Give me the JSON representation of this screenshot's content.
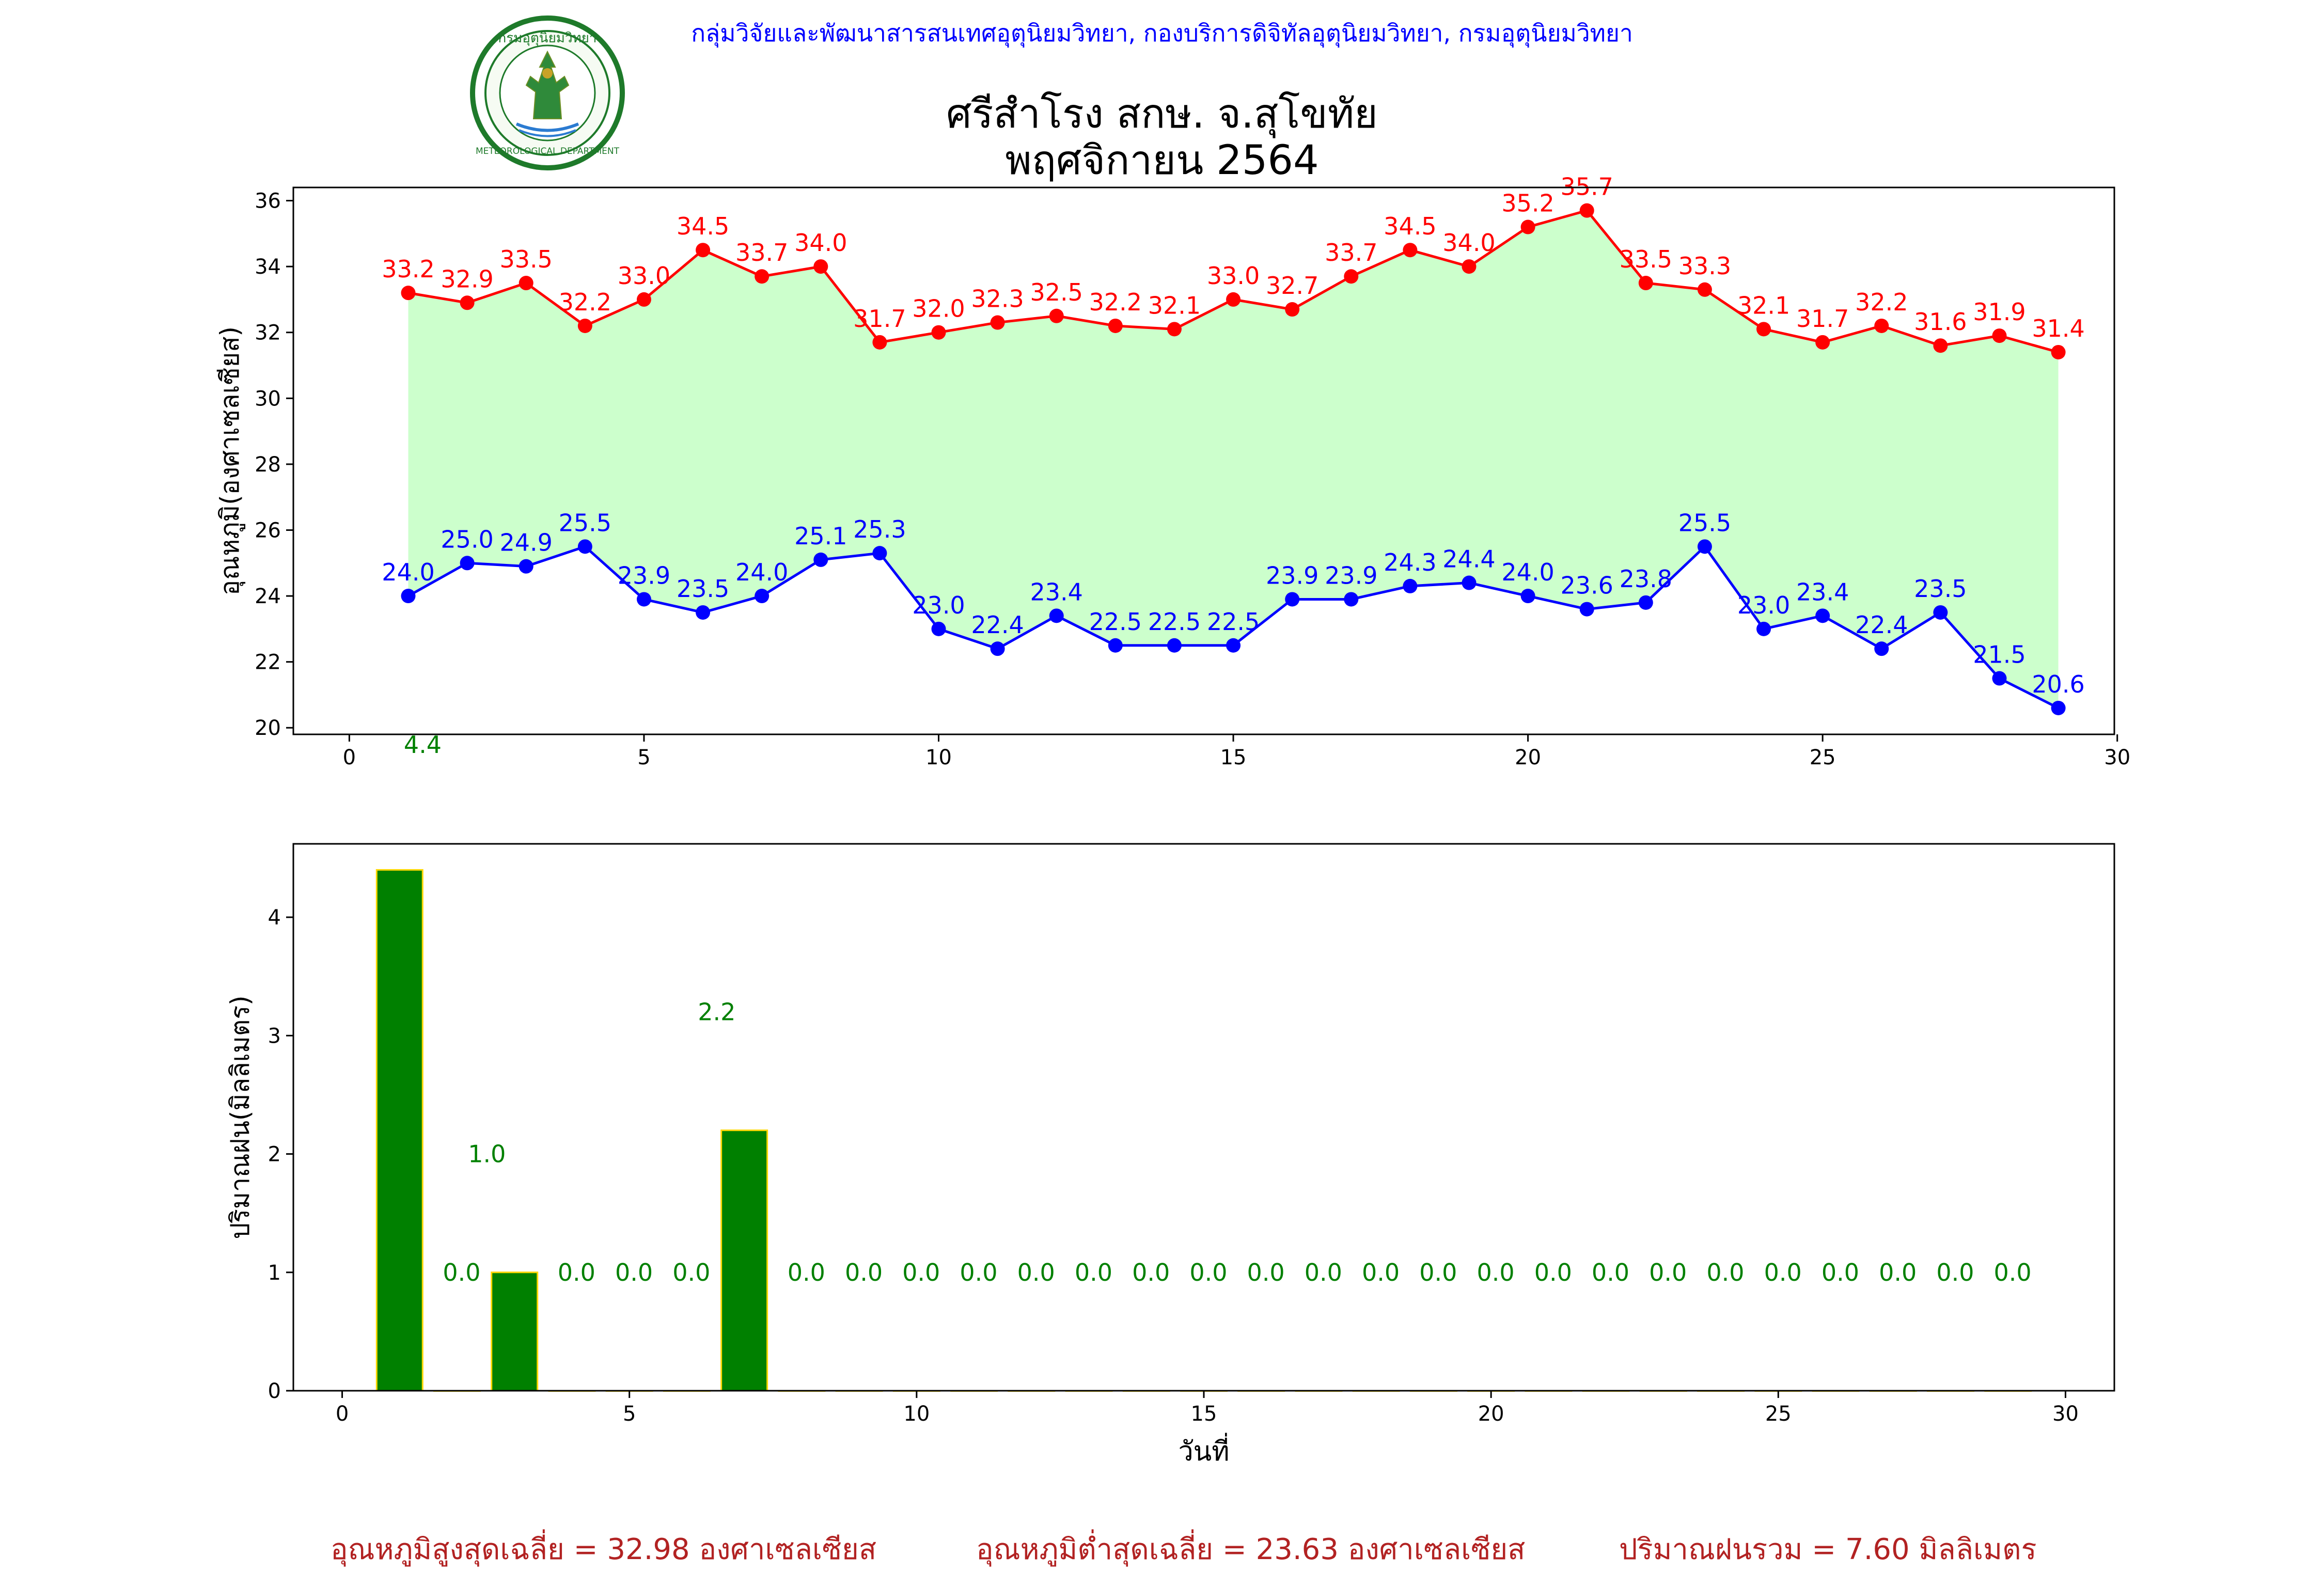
{
  "header": {
    "credit": "กลุ่มวิจัยและพัฒนาสารสนเทศอุตุนิยมวิทยา, กองบริการดิจิทัลอุตุนิยมวิทยา, กรมอุตุนิยมวิทยา",
    "title_line1": "ศรีสำโรง สกษ. จ.สุโขทัย",
    "title_line2": "พฤศจิกายน 2564",
    "logo_text": "METEOROLOGICAL DEPARTMENT",
    "logo_text_thai": "กรมอุตุนิยมวิทยา"
  },
  "colors": {
    "max_line": "#ff0000",
    "min_line": "#0000ff",
    "fill": "#ccffcc",
    "bar": "#008000",
    "bar_edge": "#ffd700",
    "rain_label": "#008000",
    "footer": "#b22222"
  },
  "chart_data": [
    {
      "type": "line",
      "ylabel": "อุณหภูมิ(องศาเซลเซียส)",
      "xlim": [
        -0.95,
        29.95
      ],
      "ylim": [
        19.8,
        36.4
      ],
      "xticks": [
        0,
        5,
        10,
        15,
        20,
        25,
        30
      ],
      "yticks": [
        20,
        22,
        24,
        26,
        28,
        30,
        32,
        34,
        36
      ],
      "x": [
        1,
        2,
        3,
        4,
        5,
        6,
        7,
        8,
        9,
        10,
        11,
        12,
        13,
        14,
        15,
        16,
        17,
        18,
        19,
        20,
        21,
        22,
        23,
        24,
        25,
        26,
        27,
        28,
        29
      ],
      "series": [
        {
          "values": [
            33.2,
            32.9,
            33.5,
            32.2,
            33.0,
            34.5,
            33.7,
            34.0,
            31.7,
            32.0,
            32.3,
            32.5,
            32.2,
            32.1,
            33.0,
            32.7,
            33.7,
            34.5,
            34.0,
            35.2,
            35.7,
            33.5,
            33.3,
            32.1,
            31.7,
            32.2,
            31.6,
            31.9,
            31.4
          ]
        },
        {
          "values": [
            24.0,
            25.0,
            24.9,
            25.5,
            23.9,
            23.5,
            24.0,
            25.1,
            25.3,
            23.0,
            22.4,
            23.4,
            22.5,
            22.5,
            22.5,
            23.9,
            23.9,
            24.3,
            24.4,
            24.0,
            23.6,
            23.8,
            25.5,
            23.0,
            23.4,
            22.4,
            23.5,
            21.5,
            20.6
          ]
        }
      ],
      "stray_label": {
        "x": 1,
        "y": 19.8,
        "text": "4.4"
      }
    },
    {
      "type": "bar",
      "xlabel": "วันที่",
      "ylabel": "ปริมาณฝน(มิลลิเมตร)",
      "xlim": [
        -0.85,
        30.85
      ],
      "ylim": [
        0,
        4.62
      ],
      "xticks": [
        0,
        5,
        10,
        15,
        20,
        25,
        30
      ],
      "yticks": [
        0,
        1,
        2,
        3,
        4
      ],
      "x": [
        1,
        2,
        3,
        4,
        5,
        6,
        7,
        8,
        9,
        10,
        11,
        12,
        13,
        14,
        15,
        16,
        17,
        18,
        19,
        20,
        21,
        22,
        23,
        24,
        25,
        26,
        27,
        28,
        29
      ],
      "values": [
        4.4,
        0,
        1.0,
        0,
        0,
        0,
        2.2,
        0,
        0,
        0,
        0,
        0,
        0,
        0,
        0,
        0,
        0,
        0,
        0,
        0,
        0,
        0,
        0,
        0,
        0,
        0,
        0,
        0,
        0
      ]
    }
  ],
  "summary": {
    "avg_max": "อุณหภูมิสูงสุดเฉลี่ย = 32.98 องศาเซลเซียส",
    "avg_min": "อุณหภูมิต่ำสุดเฉลี่ย = 23.63 องศาเซลเซียส",
    "total_rain": "ปริมาณฝนรวม = 7.60 มิลลิเมตร"
  }
}
